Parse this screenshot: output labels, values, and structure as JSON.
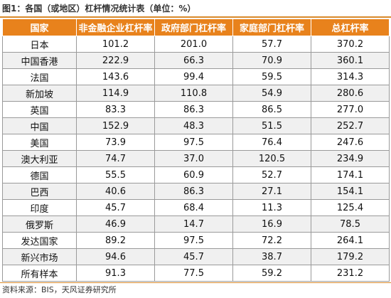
{
  "figure": {
    "title": "图1：各国（或地区）杠杆情况统计表（单位：%）",
    "source": "资料来源：BIS，天风证券研究所"
  },
  "table": {
    "headers": [
      "国家",
      "非金融企业杠杆率",
      "政府部门杠杆率",
      "家庭部门杠杆率",
      "总杠杆率"
    ],
    "rows": [
      [
        "日本",
        "101.2",
        "201.0",
        "57.7",
        "370.2"
      ],
      [
        "中国香港",
        "222.9",
        "66.3",
        "70.9",
        "360.1"
      ],
      [
        "法国",
        "143.6",
        "99.4",
        "59.5",
        "314.3"
      ],
      [
        "新加坡",
        "114.9",
        "110.8",
        "54.9",
        "280.6"
      ],
      [
        "英国",
        "83.3",
        "86.3",
        "86.5",
        "277.0"
      ],
      [
        "中国",
        "152.9",
        "48.3",
        "51.5",
        "252.7"
      ],
      [
        "美国",
        "73.9",
        "97.5",
        "76.4",
        "247.6"
      ],
      [
        "澳大利亚",
        "74.7",
        "37.0",
        "120.5",
        "234.9"
      ],
      [
        "德国",
        "55.5",
        "60.9",
        "52.7",
        "174.1"
      ],
      [
        "巴西",
        "40.6",
        "86.3",
        "27.1",
        "154.1"
      ],
      [
        "印度",
        "45.7",
        "68.4",
        "11.3",
        "125.4"
      ],
      [
        "俄罗斯",
        "46.9",
        "14.7",
        "16.9",
        "78.5"
      ],
      [
        "发达国家",
        "89.2",
        "97.5",
        "72.2",
        "264.1"
      ],
      [
        "新兴市场",
        "94.6",
        "45.7",
        "38.7",
        "179.2"
      ],
      [
        "所有样本",
        "91.3",
        "77.5",
        "59.2",
        "231.2"
      ]
    ]
  },
  "colors": {
    "header_bg": "#e8821c",
    "header_text": "#ffffff",
    "rule": "#d98a2b",
    "stripe": "#f0f0f0"
  }
}
